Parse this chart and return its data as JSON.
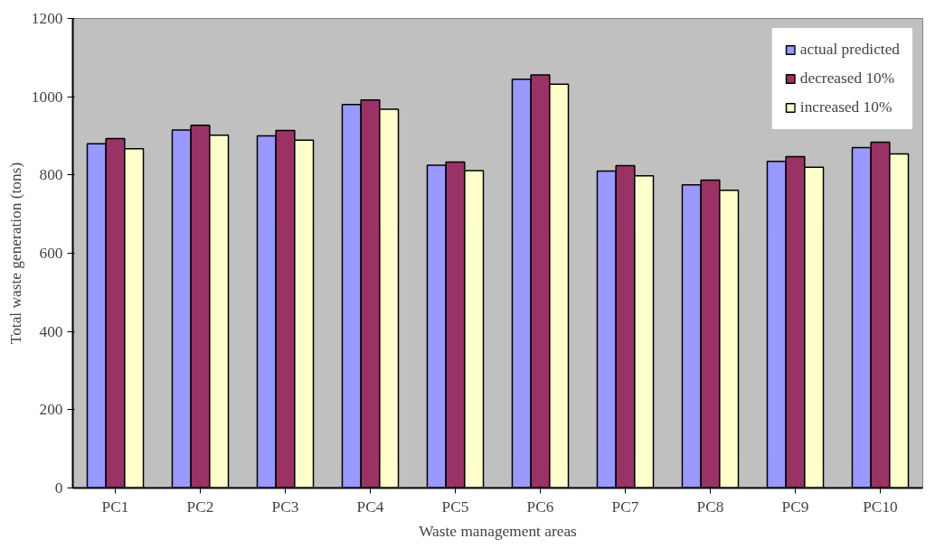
{
  "chart_data": {
    "type": "bar",
    "xlabel": "Waste management areas",
    "ylabel": "Total waste generation (tons)",
    "categories": [
      "PC1",
      "PC2",
      "PC3",
      "PC4",
      "PC5",
      "PC6",
      "PC7",
      "PC8",
      "PC9",
      "PC10"
    ],
    "series": [
      {
        "name": "actual predicted",
        "color": "#9999ff",
        "values": [
          880,
          915,
          900,
          980,
          825,
          1045,
          810,
          775,
          835,
          870
        ]
      },
      {
        "name": "decreased 10%",
        "color": "#993366",
        "values": [
          893,
          927,
          914,
          992,
          833,
          1056,
          824,
          787,
          847,
          884
        ]
      },
      {
        "name": "increased 10%",
        "color": "#ffffcc",
        "values": [
          867,
          902,
          889,
          968,
          811,
          1032,
          798,
          761,
          820,
          854
        ]
      }
    ],
    "ylim": [
      0,
      1200
    ],
    "yticks": [
      0,
      200,
      400,
      600,
      800,
      1000,
      1200
    ],
    "grid": false,
    "legend": "top right"
  }
}
